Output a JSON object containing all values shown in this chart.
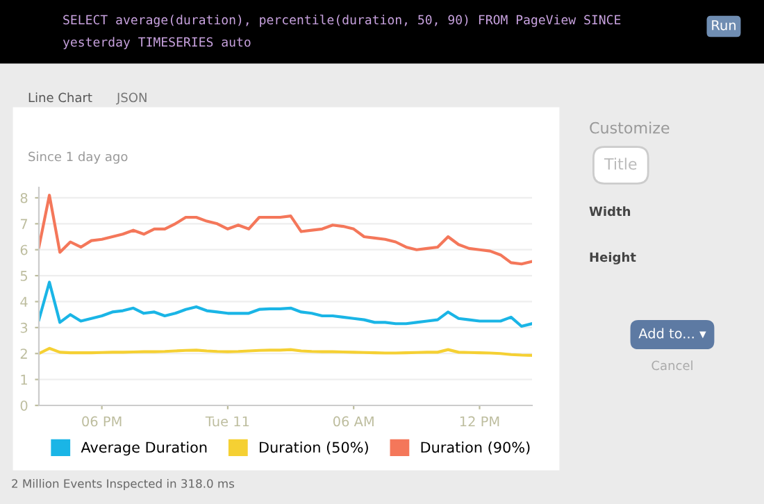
{
  "chart_data": {
    "type": "line",
    "subtitle": "Since 1 day ago",
    "categories": [
      null,
      null,
      null,
      null,
      null,
      null,
      "06 PM",
      null,
      null,
      null,
      null,
      null,
      null,
      null,
      null,
      null,
      null,
      null,
      "Tue 11",
      null,
      null,
      null,
      null,
      null,
      null,
      null,
      null,
      null,
      null,
      null,
      "06 AM",
      null,
      null,
      null,
      null,
      null,
      null,
      null,
      null,
      null,
      null,
      null,
      "12 PM",
      null,
      null,
      null,
      null,
      null
    ],
    "series": [
      {
        "name": "Average Duration",
        "color": "#1ab5e6",
        "values": [
          3.3,
          4.75,
          3.2,
          3.5,
          3.25,
          3.35,
          3.45,
          3.6,
          3.65,
          3.75,
          3.55,
          3.6,
          3.45,
          3.55,
          3.7,
          3.8,
          3.65,
          3.6,
          3.55,
          3.55,
          3.55,
          3.7,
          3.72,
          3.72,
          3.75,
          3.6,
          3.55,
          3.45,
          3.45,
          3.4,
          3.35,
          3.3,
          3.2,
          3.2,
          3.15,
          3.15,
          3.2,
          3.25,
          3.3,
          3.6,
          3.35,
          3.3,
          3.25,
          3.25,
          3.25,
          3.4,
          3.05,
          3.15
        ]
      },
      {
        "name": "Duration (50%)",
        "color": "#f5d033",
        "values": [
          2.0,
          2.2,
          2.05,
          2.03,
          2.03,
          2.03,
          2.04,
          2.05,
          2.05,
          2.06,
          2.07,
          2.07,
          2.08,
          2.1,
          2.12,
          2.13,
          2.1,
          2.08,
          2.07,
          2.08,
          2.1,
          2.12,
          2.13,
          2.13,
          2.15,
          2.1,
          2.08,
          2.07,
          2.07,
          2.06,
          2.05,
          2.04,
          2.03,
          2.02,
          2.02,
          2.03,
          2.04,
          2.05,
          2.05,
          2.15,
          2.05,
          2.04,
          2.03,
          2.02,
          2.0,
          1.96,
          1.94,
          1.93
        ]
      },
      {
        "name": "Duration (90%)",
        "color": "#f4775a",
        "values": [
          6.1,
          8.1,
          5.9,
          6.3,
          6.1,
          6.35,
          6.4,
          6.5,
          6.6,
          6.75,
          6.6,
          6.8,
          6.8,
          7.0,
          7.25,
          7.25,
          7.1,
          7.0,
          6.8,
          6.95,
          6.8,
          7.25,
          7.25,
          7.25,
          7.3,
          6.7,
          6.75,
          6.8,
          6.95,
          6.9,
          6.8,
          6.5,
          6.45,
          6.4,
          6.3,
          6.1,
          6.0,
          6.05,
          6.1,
          6.5,
          6.2,
          6.05,
          6.0,
          5.95,
          5.8,
          5.5,
          5.45,
          5.55
        ]
      }
    ],
    "ylim": [
      0,
      8.4
    ],
    "yticks": [
      0,
      1,
      2,
      3,
      4,
      5,
      6,
      7,
      8
    ],
    "grid": "y",
    "legend": "bottom",
    "marker": "none",
    "line_style": "solid",
    "annotations": [
      "SELECT average(duration), percentile(duration, 50, 90) FROM PageView SINCE",
      "yesterday TIMESERIES auto",
      "Run",
      "Line Chart",
      "JSON",
      "Customize",
      "Title",
      "Width",
      "Height",
      "Add to... ▾",
      "Cancel",
      "2 Million Events Inspected in 318.0 ms"
    ]
  }
}
